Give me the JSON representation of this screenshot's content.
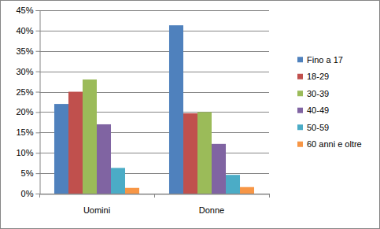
{
  "chart_data": {
    "type": "bar",
    "categories": [
      "Uomini",
      "Donne"
    ],
    "series": [
      {
        "name": "Fino a 17",
        "color": "#4F81BD",
        "values": [
          22,
          41.3
        ]
      },
      {
        "name": "18-29",
        "color": "#C0504D",
        "values": [
          25,
          19.7
        ]
      },
      {
        "name": "30-39",
        "color": "#9BBB59",
        "values": [
          28,
          20
        ]
      },
      {
        "name": "40-49",
        "color": "#8064A2",
        "values": [
          17,
          12.2
        ]
      },
      {
        "name": "50-59",
        "color": "#4BACC6",
        "values": [
          6.3,
          4.6
        ]
      },
      {
        "name": "60 anni e oltre",
        "color": "#F79646",
        "values": [
          1.4,
          1.6
        ]
      }
    ],
    "ylim": [
      0,
      45
    ],
    "yticks": [
      {
        "value": 0,
        "label": "0%"
      },
      {
        "value": 5,
        "label": "5%"
      },
      {
        "value": 10,
        "label": "10%"
      },
      {
        "value": 15,
        "label": "15%"
      },
      {
        "value": 20,
        "label": "20%"
      },
      {
        "value": 25,
        "label": "25%"
      },
      {
        "value": 30,
        "label": "30%"
      },
      {
        "value": 35,
        "label": "35%"
      },
      {
        "value": 40,
        "label": "40%"
      },
      {
        "value": 45,
        "label": "45%"
      }
    ],
    "grid": true,
    "legend": "right"
  }
}
